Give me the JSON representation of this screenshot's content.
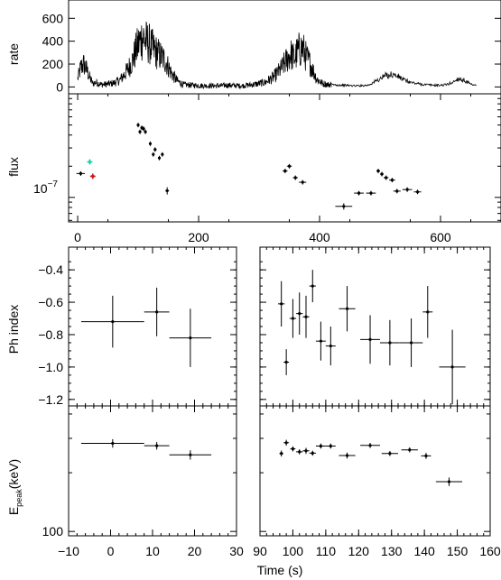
{
  "chart_data": [
    {
      "type": "line",
      "panel": "rate",
      "ylabel": "rate",
      "xlabel": "",
      "xlim": [
        -15,
        700
      ],
      "ylim": [
        -60,
        760
      ],
      "yticks": [
        0,
        200,
        400,
        600
      ],
      "xticks": [],
      "segments": [
        {
          "t": [
            0,
            5,
            10,
            15,
            20,
            25,
            30,
            40,
            50,
            60,
            70,
            80,
            90,
            95,
            100,
            105,
            108,
            112,
            118,
            125,
            135,
            145,
            155,
            165,
            175,
            190,
            210,
            230,
            250,
            270,
            290,
            310,
            325,
            335,
            345,
            352,
            358,
            365,
            372,
            378,
            385,
            395,
            405,
            415,
            420
          ],
          "r": [
            70,
            170,
            200,
            150,
            80,
            30,
            40,
            20,
            25,
            35,
            60,
            130,
            220,
            300,
            370,
            420,
            440,
            400,
            380,
            330,
            280,
            230,
            120,
            50,
            20,
            15,
            10,
            10,
            15,
            10,
            20,
            40,
            90,
            150,
            230,
            290,
            250,
            320,
            340,
            260,
            200,
            70,
            30,
            20,
            20
          ]
        },
        {
          "t": [
            420,
            440,
            460,
            480,
            500,
            510,
            520,
            530,
            540,
            550,
            560,
            575,
            590,
            600,
            610,
            620,
            630,
            640,
            650,
            660
          ],
          "r": [
            20,
            15,
            10,
            15,
            70,
            100,
            110,
            90,
            60,
            40,
            30,
            20,
            15,
            15,
            20,
            40,
            75,
            55,
            20,
            10
          ]
        }
      ]
    },
    {
      "type": "scatter",
      "panel": "flux",
      "ylabel": "flux",
      "xlabel": "",
      "yscale": "log",
      "ylim": [
        5.8e-08,
        1e-06
      ],
      "xlim": [
        -15,
        700
      ],
      "xticks": [
        0,
        200,
        400,
        600
      ],
      "ytick_label": "10",
      "ytick_exp": "−7",
      "points": [
        {
          "x": 5,
          "y": 1.7e-07,
          "xerr": 7,
          "yerr_frac": 0.05
        },
        {
          "x": 100,
          "y": 5e-07,
          "xerr": 2,
          "yerr_frac": 0.05
        },
        {
          "x": 103,
          "y": 4.3e-07,
          "xerr": 2,
          "yerr_frac": 0.05
        },
        {
          "x": 106,
          "y": 4.7e-07,
          "xerr": 2,
          "yerr_frac": 0.05
        },
        {
          "x": 109,
          "y": 4.6e-07,
          "xerr": 2,
          "yerr_frac": 0.05
        },
        {
          "x": 112,
          "y": 4.3e-07,
          "xerr": 2,
          "yerr_frac": 0.05
        },
        {
          "x": 120,
          "y": 3.3e-07,
          "xerr": 2,
          "yerr_frac": 0.05
        },
        {
          "x": 125,
          "y": 2.6e-07,
          "xerr": 2,
          "yerr_frac": 0.05
        },
        {
          "x": 128,
          "y": 2.9e-07,
          "xerr": 2,
          "yerr_frac": 0.05
        },
        {
          "x": 135,
          "y": 2.4e-07,
          "xerr": 2,
          "yerr_frac": 0.05
        },
        {
          "x": 140,
          "y": 2.6e-07,
          "xerr": 2,
          "yerr_frac": 0.05
        },
        {
          "x": 148,
          "y": 1.16e-07,
          "xerr": 3,
          "yerr_frac": 0.08
        },
        {
          "x": 343,
          "y": 1.8e-07,
          "xerr": 4,
          "yerr_frac": 0.05
        },
        {
          "x": 350,
          "y": 2e-07,
          "xerr": 4,
          "yerr_frac": 0.05
        },
        {
          "x": 360,
          "y": 1.55e-07,
          "xerr": 4,
          "yerr_frac": 0.05
        },
        {
          "x": 372,
          "y": 1.4e-07,
          "xerr": 6,
          "yerr_frac": 0.05
        },
        {
          "x": 440,
          "y": 8.2e-08,
          "xerr": 14,
          "yerr_frac": 0.07
        },
        {
          "x": 465,
          "y": 1.1e-07,
          "xerr": 8,
          "yerr_frac": 0.05
        },
        {
          "x": 485,
          "y": 1.1e-07,
          "xerr": 8,
          "yerr_frac": 0.05
        },
        {
          "x": 497,
          "y": 1.8e-07,
          "xerr": 3,
          "yerr_frac": 0.05
        },
        {
          "x": 503,
          "y": 1.68e-07,
          "xerr": 3,
          "yerr_frac": 0.05
        },
        {
          "x": 510,
          "y": 1.55e-07,
          "xerr": 4,
          "yerr_frac": 0.05
        },
        {
          "x": 520,
          "y": 1.47e-07,
          "xerr": 5,
          "yerr_frac": 0.05
        },
        {
          "x": 528,
          "y": 1.15e-07,
          "xerr": 6,
          "yerr_frac": 0.05
        },
        {
          "x": 545,
          "y": 1.19e-07,
          "xerr": 8,
          "yerr_frac": 0.05
        },
        {
          "x": 562,
          "y": 1.13e-07,
          "xerr": 6,
          "yerr_frac": 0.05
        }
      ],
      "special_points": [
        {
          "x": 20,
          "y": 2.2e-07,
          "color": "#19d3a8"
        },
        {
          "x": 25,
          "y": 1.6e-07,
          "color": "#d01818"
        }
      ]
    },
    {
      "type": "scatter",
      "panel": "ph-index-left",
      "ylabel": "Ph index",
      "xlabel": "",
      "xlim": [
        -10,
        30
      ],
      "ylim": [
        -1.24,
        -0.26
      ],
      "yticks": [
        -1.2,
        -1.0,
        -0.8,
        -0.6,
        -0.4
      ],
      "ytick_labels": [
        "−1.2",
        "−1.0",
        "−0.8",
        "−0.6",
        "−0.4"
      ],
      "points": [
        {
          "x": 0.5,
          "y": -0.72,
          "xerr": 7.5,
          "yerr": 0.16
        },
        {
          "x": 11,
          "y": -0.66,
          "xerr": 3,
          "yerr": 0.15
        },
        {
          "x": 19,
          "y": -0.82,
          "xerr": 5,
          "yerr": 0.18
        }
      ]
    },
    {
      "type": "scatter",
      "panel": "ph-index-right",
      "ylabel": "",
      "xlabel": "",
      "xlim": [
        90,
        160
      ],
      "ylim": [
        -1.24,
        -0.26
      ],
      "points": [
        {
          "x": 96.5,
          "y": -0.61,
          "xerr": 1,
          "yerr": 0.14
        },
        {
          "x": 98,
          "y": -0.97,
          "xerr": 0.8,
          "yerr": 0.08
        },
        {
          "x": 100,
          "y": -0.7,
          "xerr": 1,
          "yerr": 0.12
        },
        {
          "x": 102,
          "y": -0.67,
          "xerr": 1,
          "yerr": 0.13
        },
        {
          "x": 104,
          "y": -0.69,
          "xerr": 1,
          "yerr": 0.13
        },
        {
          "x": 106,
          "y": -0.5,
          "xerr": 1,
          "yerr": 0.1
        },
        {
          "x": 108.5,
          "y": -0.84,
          "xerr": 1.5,
          "yerr": 0.12
        },
        {
          "x": 111.5,
          "y": -0.87,
          "xerr": 1.5,
          "yerr": 0.12
        },
        {
          "x": 116.5,
          "y": -0.64,
          "xerr": 2.5,
          "yerr": 0.14
        },
        {
          "x": 123.5,
          "y": -0.83,
          "xerr": 3,
          "yerr": 0.15
        },
        {
          "x": 129.5,
          "y": -0.85,
          "xerr": 3,
          "yerr": 0.14
        },
        {
          "x": 136,
          "y": -0.85,
          "xerr": 3.5,
          "yerr": 0.15
        },
        {
          "x": 141,
          "y": -0.66,
          "xerr": 1.5,
          "yerr": 0.16
        },
        {
          "x": 148.5,
          "y": -1.0,
          "xerr": 4,
          "yerr": 0.23
        }
      ]
    },
    {
      "type": "scatter",
      "panel": "epeak-left",
      "ylabel": "E",
      "ylabel_sub": "peak",
      "ylabel_suffix": "(keV)",
      "xlabel": "",
      "yscale": "log",
      "xlim": [
        -10,
        30
      ],
      "ylim": [
        95,
        440
      ],
      "yticks": [
        100
      ],
      "ytick_labels": [
        "100"
      ],
      "xticks": [
        -10,
        0,
        10,
        20,
        30
      ],
      "xtick_labels": [
        "−10",
        "0",
        "10",
        "20",
        "30"
      ],
      "points": [
        {
          "x": 0.5,
          "y": 283,
          "xerr": 7.5,
          "yerr_frac": 0.05
        },
        {
          "x": 11,
          "y": 275,
          "xerr": 3,
          "yerr_frac": 0.045
        },
        {
          "x": 19,
          "y": 247,
          "xerr": 5,
          "yerr_frac": 0.055
        }
      ]
    },
    {
      "type": "scatter",
      "panel": "epeak-right",
      "ylabel": "",
      "xlabel": "Time (s)",
      "yscale": "log",
      "xlim": [
        90,
        160
      ],
      "ylim": [
        95,
        440
      ],
      "xticks": [
        90,
        100,
        110,
        120,
        130,
        140,
        150,
        160
      ],
      "xtick_labels": [
        "90",
        "100",
        "110",
        "120",
        "130",
        "140",
        "150",
        "160"
      ],
      "points": [
        {
          "x": 96.5,
          "y": 251,
          "xerr": 0.6,
          "yerr_frac": 0.035
        },
        {
          "x": 98,
          "y": 285,
          "xerr": 0.8,
          "yerr_frac": 0.035
        },
        {
          "x": 100,
          "y": 265,
          "xerr": 0.8,
          "yerr_frac": 0.03
        },
        {
          "x": 102,
          "y": 256,
          "xerr": 1,
          "yerr_frac": 0.03
        },
        {
          "x": 104,
          "y": 259,
          "xerr": 1,
          "yerr_frac": 0.035
        },
        {
          "x": 106,
          "y": 252,
          "xerr": 1,
          "yerr_frac": 0.03
        },
        {
          "x": 108.5,
          "y": 274,
          "xerr": 1.5,
          "yerr_frac": 0.03
        },
        {
          "x": 111.5,
          "y": 274,
          "xerr": 1.5,
          "yerr_frac": 0.03
        },
        {
          "x": 116.5,
          "y": 245,
          "xerr": 2.5,
          "yerr_frac": 0.035
        },
        {
          "x": 123.5,
          "y": 276,
          "xerr": 3,
          "yerr_frac": 0.03
        },
        {
          "x": 129.5,
          "y": 251,
          "xerr": 2.5,
          "yerr_frac": 0.03
        },
        {
          "x": 135.5,
          "y": 262,
          "xerr": 2.5,
          "yerr_frac": 0.03
        },
        {
          "x": 140.5,
          "y": 244,
          "xerr": 1.5,
          "yerr_frac": 0.035
        },
        {
          "x": 147.5,
          "y": 180,
          "xerr": 4,
          "yerr_frac": 0.05
        }
      ]
    }
  ]
}
